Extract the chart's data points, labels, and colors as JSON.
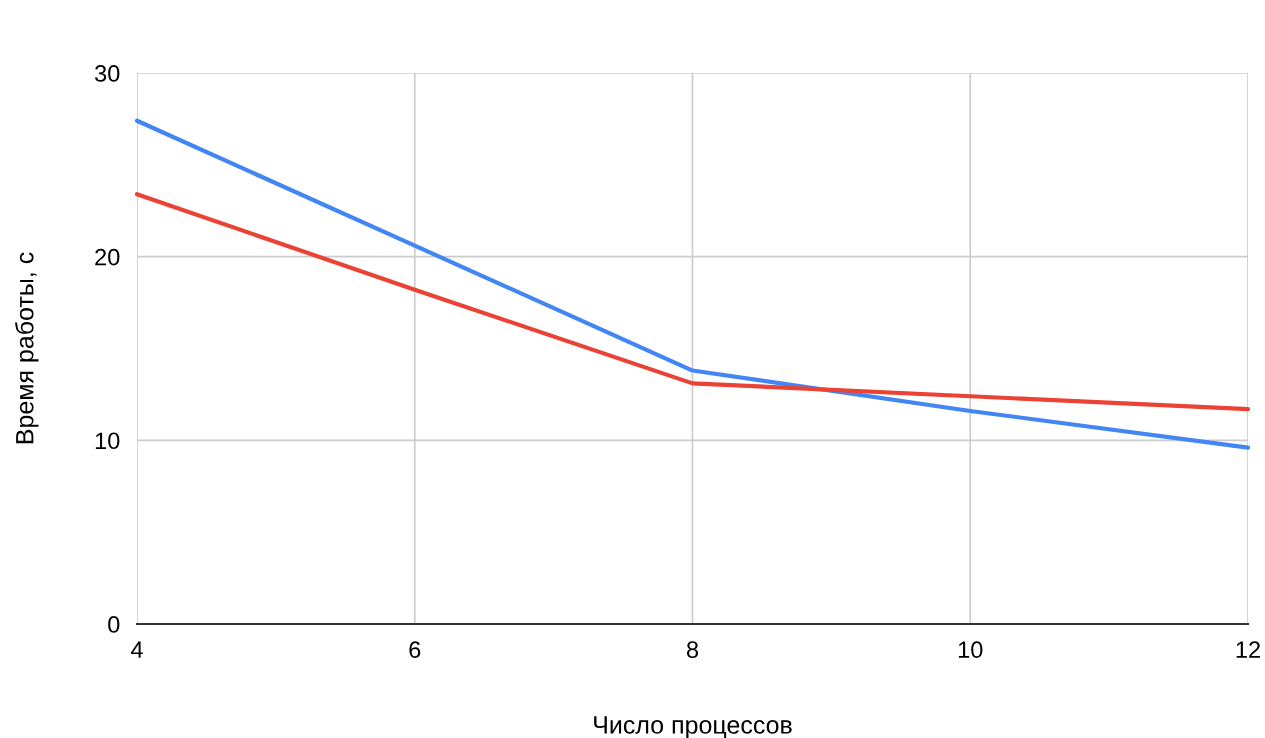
{
  "chart_data": {
    "type": "line",
    "xlabel": "Число процессов",
    "ylabel": "Время работы, с",
    "x": [
      4,
      6,
      8,
      10,
      12
    ],
    "series": [
      {
        "color": "#4285f4",
        "values": [
          27.4,
          20.6,
          13.8,
          11.6,
          9.6
        ]
      },
      {
        "color": "#ea4335",
        "values": [
          23.4,
          18.2,
          13.1,
          12.4,
          11.7
        ]
      }
    ],
    "xlim": [
      4,
      12
    ],
    "xticks": [
      4,
      6,
      8,
      10,
      12
    ],
    "ylim": [
      0,
      30
    ],
    "yticks": [
      0,
      10,
      20,
      30
    ],
    "grid": true,
    "marker": "none",
    "line_style": "solid"
  }
}
